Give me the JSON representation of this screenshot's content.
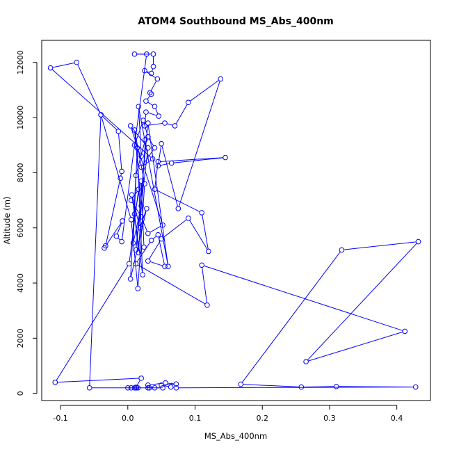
{
  "chart_data": {
    "type": "line",
    "title": "ATOM4 Southbound MS_Abs_400nm",
    "xlabel": "MS_Abs_400nm",
    "ylabel": "Altitude (m)",
    "xlim": [
      -0.128,
      0.45
    ],
    "ylim": [
      -260,
      12800
    ],
    "xticks": [
      -0.1,
      0.0,
      0.1,
      0.2,
      0.3,
      0.4
    ],
    "xtick_labels": [
      "-0.1",
      "0.0",
      "0.1",
      "0.2",
      "0.3",
      "0.4"
    ],
    "yticks": [
      0,
      2000,
      4000,
      6000,
      8000,
      10000,
      12000
    ],
    "ytick_labels": [
      "0",
      "2000",
      "4000",
      "6000",
      "8000",
      "10000",
      "12000"
    ],
    "grid": false,
    "series": [
      {
        "color": "#0000ff",
        "marker": "open-circle",
        "points": [
          {
            "x": 0.0,
            "y": 200
          },
          {
            "x": 0.005,
            "y": 200
          },
          {
            "x": 0.01,
            "y": 200
          },
          {
            "x": 0.013,
            "y": 200
          },
          {
            "x": 0.015,
            "y": 200
          },
          {
            "x": 0.012,
            "y": 220
          },
          {
            "x": 0.02,
            "y": 550
          },
          {
            "x": -0.108,
            "y": 400
          },
          {
            "x": 0.002,
            "y": 4700
          },
          {
            "x": 0.016,
            "y": 7400
          },
          {
            "x": 0.005,
            "y": 7000
          },
          {
            "x": 0.02,
            "y": 6400
          },
          {
            "x": 0.03,
            "y": 5800
          },
          {
            "x": 0.052,
            "y": 6100
          },
          {
            "x": 0.004,
            "y": 9700
          },
          {
            "x": 0.03,
            "y": 8900
          },
          {
            "x": 0.012,
            "y": 5200
          },
          {
            "x": 0.03,
            "y": 9800
          },
          {
            "x": 0.06,
            "y": 4600
          },
          {
            "x": 0.016,
            "y": 10400
          },
          {
            "x": 0.02,
            "y": 8600
          },
          {
            "x": 0.01,
            "y": 9000
          },
          {
            "x": 0.023,
            "y": 9900
          },
          {
            "x": 0.03,
            "y": 9300
          },
          {
            "x": 0.04,
            "y": 8900
          },
          {
            "x": 0.02,
            "y": 8200
          },
          {
            "x": 0.037,
            "y": 8500
          },
          {
            "x": -0.115,
            "y": 11800
          },
          {
            "x": -0.076,
            "y": 12000
          },
          {
            "x": -0.04,
            "y": 10100
          },
          {
            "x": -0.014,
            "y": 9500
          },
          {
            "x": -0.009,
            "y": 8050
          },
          {
            "x": -0.011,
            "y": 7800
          },
          {
            "x": -0.033,
            "y": 5350
          },
          {
            "x": -0.035,
            "y": 5270
          },
          {
            "x": -0.008,
            "y": 6250
          },
          {
            "x": -0.017,
            "y": 5700
          },
          {
            "x": -0.009,
            "y": 5500
          },
          {
            "x": 0.028,
            "y": 12300
          },
          {
            "x": 0.01,
            "y": 12300
          },
          {
            "x": 0.038,
            "y": 12300
          },
          {
            "x": 0.038,
            "y": 11850
          },
          {
            "x": 0.035,
            "y": 11600
          },
          {
            "x": 0.025,
            "y": 11700
          },
          {
            "x": 0.044,
            "y": 11400
          },
          {
            "x": 0.033,
            "y": 10900
          },
          {
            "x": 0.035,
            "y": 10850
          },
          {
            "x": 0.027,
            "y": 10600
          },
          {
            "x": 0.04,
            "y": 10400
          },
          {
            "x": 0.046,
            "y": 10050
          },
          {
            "x": 0.027,
            "y": 10200
          },
          {
            "x": 0.025,
            "y": 9700
          },
          {
            "x": 0.055,
            "y": 9800
          },
          {
            "x": 0.07,
            "y": 9700
          },
          {
            "x": 0.09,
            "y": 10550
          },
          {
            "x": 0.138,
            "y": 11400
          },
          {
            "x": 0.075,
            "y": 6700
          },
          {
            "x": 0.05,
            "y": 9050
          },
          {
            "x": 0.045,
            "y": 8250
          },
          {
            "x": 0.065,
            "y": 8350
          },
          {
            "x": 0.145,
            "y": 8550
          },
          {
            "x": 0.045,
            "y": 8400
          },
          {
            "x": 0.04,
            "y": 7400
          },
          {
            "x": 0.11,
            "y": 6550
          },
          {
            "x": 0.12,
            "y": 5150
          },
          {
            "x": 0.09,
            "y": 6350
          },
          {
            "x": 0.05,
            "y": 5600
          },
          {
            "x": 0.03,
            "y": 4800
          },
          {
            "x": 0.055,
            "y": 4600
          },
          {
            "x": 0.045,
            "y": 5750
          },
          {
            "x": 0.035,
            "y": 5550
          },
          {
            "x": 0.012,
            "y": 4700
          },
          {
            "x": 0.118,
            "y": 3200
          },
          {
            "x": 0.11,
            "y": 4650
          },
          {
            "x": 0.412,
            "y": 2250
          },
          {
            "x": 0.265,
            "y": 1150
          },
          {
            "x": 0.432,
            "y": 5500
          },
          {
            "x": 0.318,
            "y": 5200
          },
          {
            "x": 0.168,
            "y": 330
          },
          {
            "x": 0.258,
            "y": 230
          },
          {
            "x": 0.31,
            "y": 250
          },
          {
            "x": 0.428,
            "y": 230
          },
          {
            "x": 0.072,
            "y": 200
          },
          {
            "x": 0.064,
            "y": 230
          },
          {
            "x": 0.05,
            "y": 300
          },
          {
            "x": 0.072,
            "y": 340
          },
          {
            "x": 0.056,
            "y": 380
          },
          {
            "x": 0.03,
            "y": 300
          },
          {
            "x": 0.032,
            "y": 200
          },
          {
            "x": 0.03,
            "y": 200
          },
          {
            "x": 0.04,
            "y": 200
          },
          {
            "x": 0.052,
            "y": 200
          },
          {
            "x": -0.057,
            "y": 200
          },
          {
            "x": -0.04,
            "y": 10100
          },
          {
            "x": 0.005,
            "y": 6300
          },
          {
            "x": 0.015,
            "y": 3800
          },
          {
            "x": 0.025,
            "y": 7600
          },
          {
            "x": 0.01,
            "y": 9550
          },
          {
            "x": 0.02,
            "y": 6800
          },
          {
            "x": 0.008,
            "y": 5450
          },
          {
            "x": 0.014,
            "y": 8900
          },
          {
            "x": 0.022,
            "y": 4300
          },
          {
            "x": 0.006,
            "y": 7200
          },
          {
            "x": 0.018,
            "y": 6000
          },
          {
            "x": 0.028,
            "y": 6700
          },
          {
            "x": 0.004,
            "y": 4150
          },
          {
            "x": 0.012,
            "y": 7900
          },
          {
            "x": 0.026,
            "y": 9200
          },
          {
            "x": 0.016,
            "y": 5100
          },
          {
            "x": 0.01,
            "y": 6500
          },
          {
            "x": 0.02,
            "y": 7700
          },
          {
            "x": 0.024,
            "y": 5300
          }
        ]
      }
    ]
  }
}
